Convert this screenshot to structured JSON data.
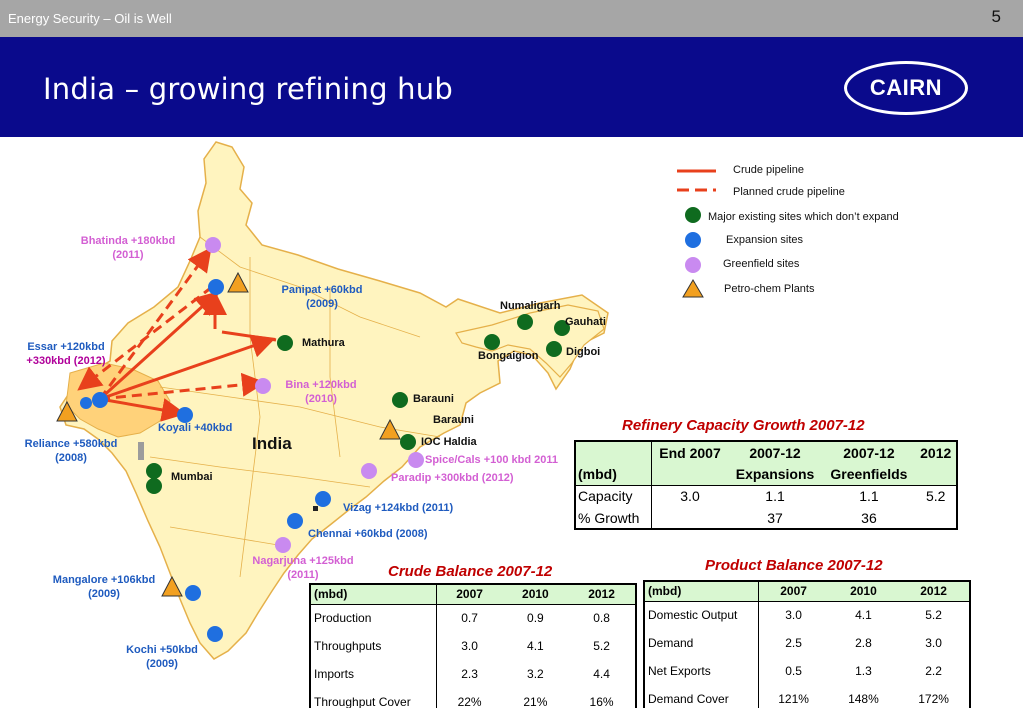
{
  "topbar": {
    "doc_title": "Energy Security – Oil is Well",
    "page_number": "5"
  },
  "header": {
    "title": "India – growing refining hub",
    "logo_text": "CAIRN"
  },
  "colors": {
    "header_bg": "#0a0a8c",
    "topbar_bg": "#a6a6a6",
    "map_land": "#fff4bf",
    "map_highlight": "#ffd27a",
    "pipeline": "#e8401c",
    "existing_site": "#0f6b1f",
    "expansion_site": "#1f6fe0",
    "greenfield_site": "#c98af0",
    "petrochem_plant": "#f2a020",
    "table_title": "#c00000",
    "table_header_bg": "#d9f7d1"
  },
  "legend": {
    "crude_pipeline": "Crude pipeline",
    "planned_pipeline": "Planned crude pipeline",
    "existing_sites": "Major existing sites which don’t expand",
    "expansion_sites": "Expansion sites",
    "greenfield_sites": "Greenfield sites",
    "petrochem_plants": "Petro-chem Plants"
  },
  "map": {
    "country": "India",
    "labels": {
      "bhatinda": "Bhatinda +180kbd",
      "bhatinda_year": "(2011)",
      "panipat": "Panipat +60kbd",
      "panipat_year": "(2009)",
      "mathura": "Mathura",
      "essar_1": "Essar +120kbd",
      "essar_2": "+330kbd (2012)",
      "bina": "Bina +120kbd",
      "bina_year": "(2010)",
      "koyali": "Koyali +40kbd",
      "reliance": "Reliance +580kbd",
      "reliance_year": "(2008)",
      "mumbai": "Mumbai",
      "numaligarh": "Numaligarh",
      "gauhati": "Gauhati",
      "digboi": "Digboi",
      "bongaigaon": "Bongaigion",
      "barauni_1": "Barauni",
      "barauni_2": "Barauni",
      "ioc_haldia": "IOC Haldia",
      "spice_cals": "Spice/Cals +100 kbd 2011",
      "paradip": "Paradip +300kbd (2012)",
      "vizag": "Vizag +124kbd (2011)",
      "chennai": "Chennai +60kbd (2008)",
      "nagarjuna": "Nagarjuna +125kbd",
      "nagarjuna_year": "(2011)",
      "mangalore": "Mangalore +106kbd",
      "mangalore_year": "(2009)",
      "kochi": "Kochi +50kbd",
      "kochi_year": "(2009)"
    }
  },
  "refinery_capacity": {
    "title": "Refinery Capacity Growth 2007-12",
    "header_row1": [
      "",
      "End 2007",
      "2007-12",
      "2007-12",
      "2012"
    ],
    "header_row2": [
      "(mbd)",
      "",
      "Expansions",
      "Greenfields",
      ""
    ],
    "rows": [
      {
        "label": "Capacity",
        "values": [
          "3.0",
          "1.1",
          "1.1",
          "5.2"
        ]
      },
      {
        "label": "% Growth",
        "values": [
          "",
          "37",
          "36",
          ""
        ]
      }
    ]
  },
  "crude_balance": {
    "title": "Crude Balance 2007-12",
    "columns": [
      "(mbd)",
      "2007",
      "2010",
      "2012"
    ],
    "rows": [
      {
        "label": "Production",
        "values": [
          "0.7",
          "0.9",
          "0.8"
        ]
      },
      {
        "label": "Throughputs",
        "values": [
          "3.0",
          "4.1",
          "5.2"
        ]
      },
      {
        "label": "Imports",
        "values": [
          "2.3",
          "3.2",
          "4.4"
        ]
      },
      {
        "label": "Throughput Cover",
        "values": [
          "22%",
          "21%",
          "16%"
        ]
      }
    ]
  },
  "product_balance": {
    "title": "Product Balance 2007-12",
    "columns": [
      "(mbd)",
      "2007",
      "2010",
      "2012"
    ],
    "rows": [
      {
        "label": "Domestic Output",
        "values": [
          "3.0",
          "4.1",
          "5.2"
        ]
      },
      {
        "label": "Demand",
        "values": [
          "2.5",
          "2.8",
          "3.0"
        ]
      },
      {
        "label": "Net Exports",
        "values": [
          "0.5",
          "1.3",
          "2.2"
        ]
      },
      {
        "label": "Demand Cover",
        "values": [
          "121%",
          "148%",
          "172%"
        ]
      }
    ]
  }
}
